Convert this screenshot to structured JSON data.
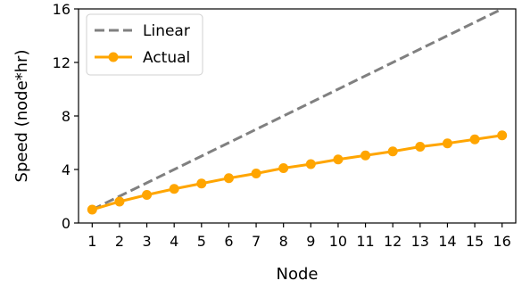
{
  "chart_data": {
    "type": "line",
    "xlabel": "Node",
    "ylabel": "Speed (node*hr)",
    "xlim": [
      0.5,
      16.5
    ],
    "ylim": [
      0,
      16
    ],
    "x": [
      1,
      2,
      3,
      4,
      5,
      6,
      7,
      8,
      9,
      10,
      11,
      12,
      13,
      14,
      15,
      16
    ],
    "xticks": [
      "1",
      "2",
      "3",
      "4",
      "5",
      "6",
      "7",
      "8",
      "9",
      "10",
      "11",
      "12",
      "13",
      "14",
      "15",
      "16"
    ],
    "yticks": [
      0,
      4,
      8,
      12,
      16
    ],
    "grid": false,
    "legend": "top-left",
    "series": [
      {
        "name": "Linear",
        "style": "dashed",
        "color": "#808080",
        "values": [
          1,
          2,
          3,
          4,
          5,
          6,
          7,
          8,
          9,
          10,
          11,
          12,
          13,
          14,
          15,
          16
        ]
      },
      {
        "name": "Actual",
        "style": "solid-marker",
        "color": "#FFA500",
        "values": [
          1.0,
          1.6,
          2.1,
          2.55,
          2.95,
          3.35,
          3.7,
          4.1,
          4.4,
          4.75,
          5.05,
          5.35,
          5.7,
          5.95,
          6.25,
          6.55
        ]
      }
    ]
  }
}
